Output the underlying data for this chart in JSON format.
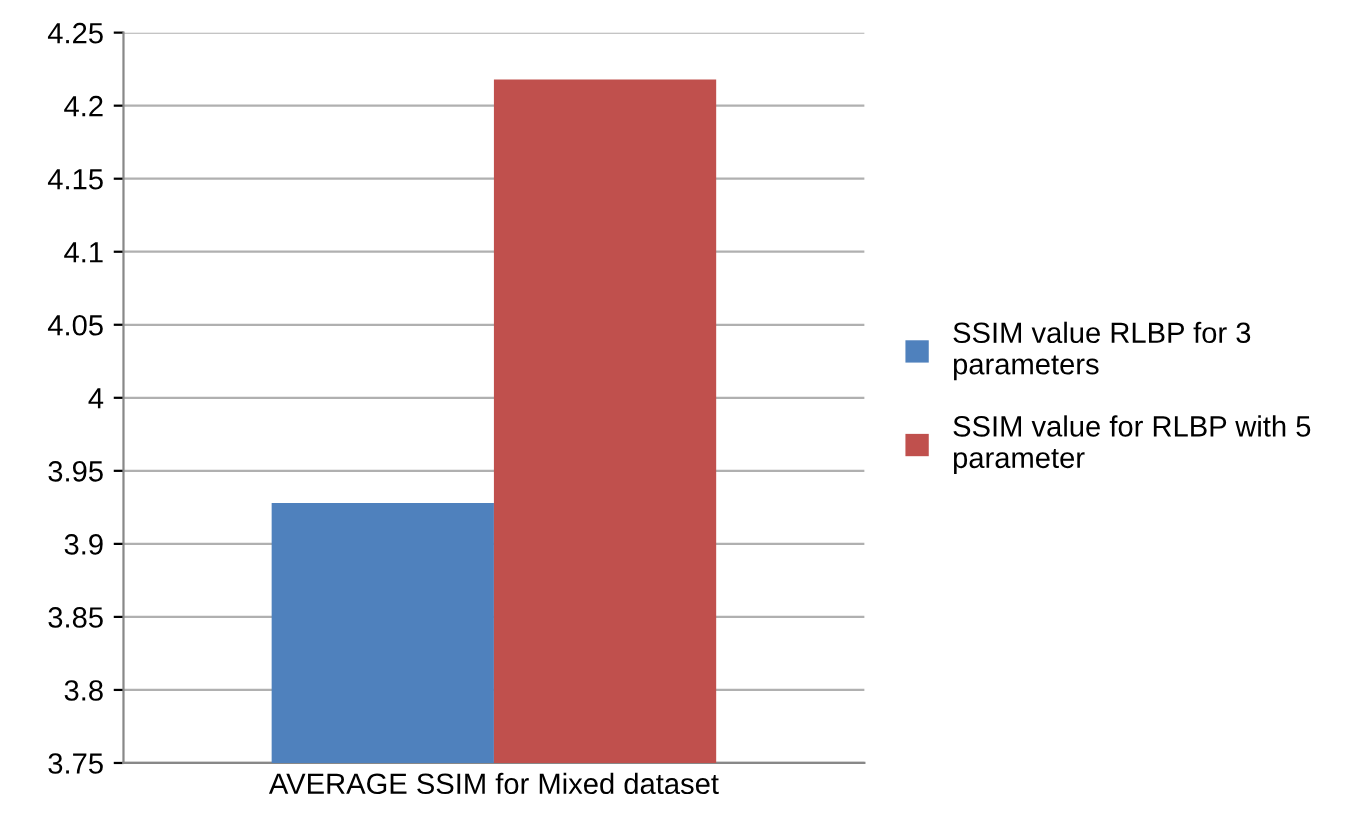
{
  "chart_data": {
    "type": "bar",
    "categories": [
      "AVERAGE SSIM for Mixed dataset"
    ],
    "series": [
      {
        "name": "SSIM value RLBP for 3 parameters",
        "color": "#4f81bd",
        "values": [
          3.928
        ]
      },
      {
        "name": "SSIM value for RLBP with 5 parameter",
        "color": "#c0504d",
        "values": [
          4.218
        ]
      }
    ],
    "ylim": [
      3.75,
      4.25
    ],
    "yticks": [
      3.75,
      3.8,
      3.85,
      3.9,
      3.95,
      4,
      4.05,
      4.1,
      4.15,
      4.2,
      4.25
    ],
    "grid": "y",
    "legend": "right"
  }
}
